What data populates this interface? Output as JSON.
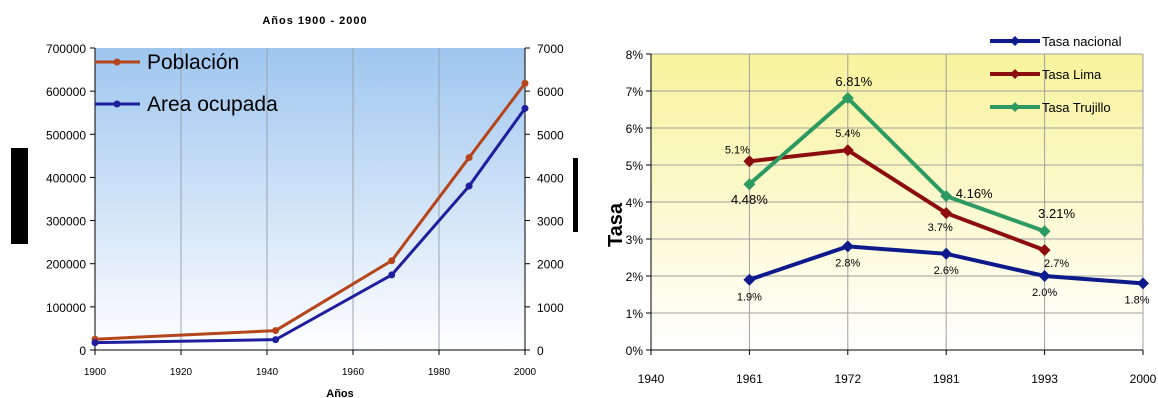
{
  "chart_data": [
    {
      "type": "line",
      "title": "Años 1900 - 2000",
      "xlabel": "Años",
      "x_ticks": [
        "1900",
        "1920",
        "1940",
        "1960",
        "1980",
        "2000"
      ],
      "xlim": [
        1900,
        2000
      ],
      "ylim_left": [
        0,
        700000
      ],
      "ylim_right": [
        0,
        7000
      ],
      "y_ticks_left": [
        "700000",
        "600000",
        "500000",
        "400000",
        "300000",
        "200000",
        "100000",
        "0"
      ],
      "y_ticks_right": [
        "7000",
        "6000",
        "5000",
        "4000",
        "3000",
        "2000",
        "1000",
        "0"
      ],
      "legend_position": "top-left",
      "series": [
        {
          "name": "Población",
          "axis": "left",
          "color": "#b5451b",
          "points": [
            [
              1900,
              25000
            ],
            [
              1942,
              45000
            ],
            [
              1969,
              207000
            ],
            [
              1987,
              446000
            ],
            [
              2000,
              618000
            ]
          ]
        },
        {
          "name": "Area ocupada",
          "axis": "right",
          "color": "#1f1f9e",
          "points": [
            [
              1900,
              170
            ],
            [
              1942,
              240
            ],
            [
              1969,
              1740
            ],
            [
              1987,
              3800
            ],
            [
              2000,
              5600
            ]
          ]
        }
      ]
    },
    {
      "type": "line",
      "categories": [
        "1940",
        "1961",
        "1972",
        "1981",
        "1993",
        "2000"
      ],
      "ylabel": "Tasa",
      "y_ticks": [
        "8%",
        "7%",
        "6%",
        "5%",
        "4%",
        "3%",
        "2%",
        "1%",
        "0%"
      ],
      "ylim": [
        0,
        8
      ],
      "legend_position": "top-right",
      "series": [
        {
          "name": "Tasa nacional",
          "color": "#0d1a8c",
          "x": [
            "1961",
            "1972",
            "1981",
            "1993",
            "2000"
          ],
          "values": [
            1.9,
            2.8,
            2.6,
            2.0,
            1.8
          ],
          "labels": [
            "1.9%",
            "2.8%",
            "2.6%",
            "2.0%",
            "1.8%"
          ]
        },
        {
          "name": "Tasa Lima",
          "color": "#8b0d0d",
          "x": [
            "1961",
            "1972",
            "1981",
            "1993"
          ],
          "values": [
            5.1,
            5.4,
            3.7,
            2.7
          ],
          "labels": [
            "5.1%",
            "5.4%",
            "3.7%",
            "2.7%"
          ]
        },
        {
          "name": "Tasa Trujillo",
          "color": "#2e9a63",
          "x": [
            "1961",
            "1972",
            "1981",
            "1993"
          ],
          "values": [
            4.48,
            6.81,
            4.16,
            3.21
          ],
          "labels": [
            "4.48%",
            "6.81%",
            "4.16%",
            "3.21%"
          ]
        }
      ]
    }
  ]
}
